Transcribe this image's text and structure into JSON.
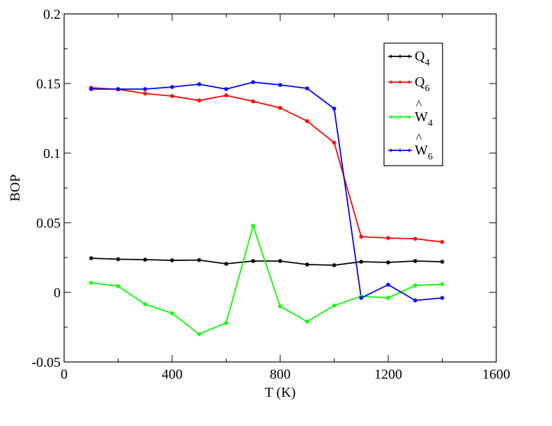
{
  "chart_data": {
    "type": "line",
    "xlabel": "T (K)",
    "ylabel": "BOP",
    "xlim": [
      0,
      1600
    ],
    "ylim": [
      -0.05,
      0.2
    ],
    "xticks": [
      0,
      400,
      800,
      1200,
      1600
    ],
    "xtick_labels": [
      "0",
      "400",
      "800",
      "1200",
      "1600"
    ],
    "yticks": [
      -0.05,
      0,
      0.05,
      0.1,
      0.15,
      0.2
    ],
    "ytick_labels": [
      "-0.05",
      "0",
      "0.05",
      "0.1",
      "0.15",
      "0.2"
    ],
    "grid": false,
    "legend_position": "top-right",
    "x": [
      100,
      200,
      300,
      400,
      500,
      600,
      700,
      800,
      900,
      1000,
      1100,
      1200,
      1300,
      1400
    ],
    "series": [
      {
        "name": "Q4",
        "base": "Q",
        "sub": "4",
        "hat": false,
        "color": "#000000",
        "values": [
          0.0245,
          0.0238,
          0.0235,
          0.023,
          0.0232,
          0.0205,
          0.0225,
          0.0225,
          0.02,
          0.0195,
          0.022,
          0.0215,
          0.0225,
          0.022
        ]
      },
      {
        "name": "Q6",
        "base": "Q",
        "sub": "6",
        "hat": false,
        "color": "#ff0000",
        "values": [
          0.147,
          0.1458,
          0.1428,
          0.141,
          0.1378,
          0.1415,
          0.1372,
          0.1325,
          0.123,
          0.1075,
          0.04,
          0.039,
          0.0385,
          0.0362
        ]
      },
      {
        "name": "Ŵ4",
        "base": "W",
        "sub": "4",
        "hat": true,
        "color": "#00ff00",
        "values": [
          0.0068,
          0.0045,
          -0.0085,
          -0.015,
          -0.03,
          -0.022,
          0.0478,
          -0.01,
          -0.021,
          -0.0095,
          -0.0028,
          -0.004,
          0.005,
          0.0058
        ]
      },
      {
        "name": "Ŵ6",
        "base": "W",
        "sub": "6",
        "hat": true,
        "color": "#0000ff",
        "values": [
          0.146,
          0.146,
          0.146,
          0.1475,
          0.1495,
          0.146,
          0.151,
          0.149,
          0.1465,
          0.132,
          -0.004,
          0.0055,
          -0.0058,
          -0.004
        ]
      }
    ]
  }
}
